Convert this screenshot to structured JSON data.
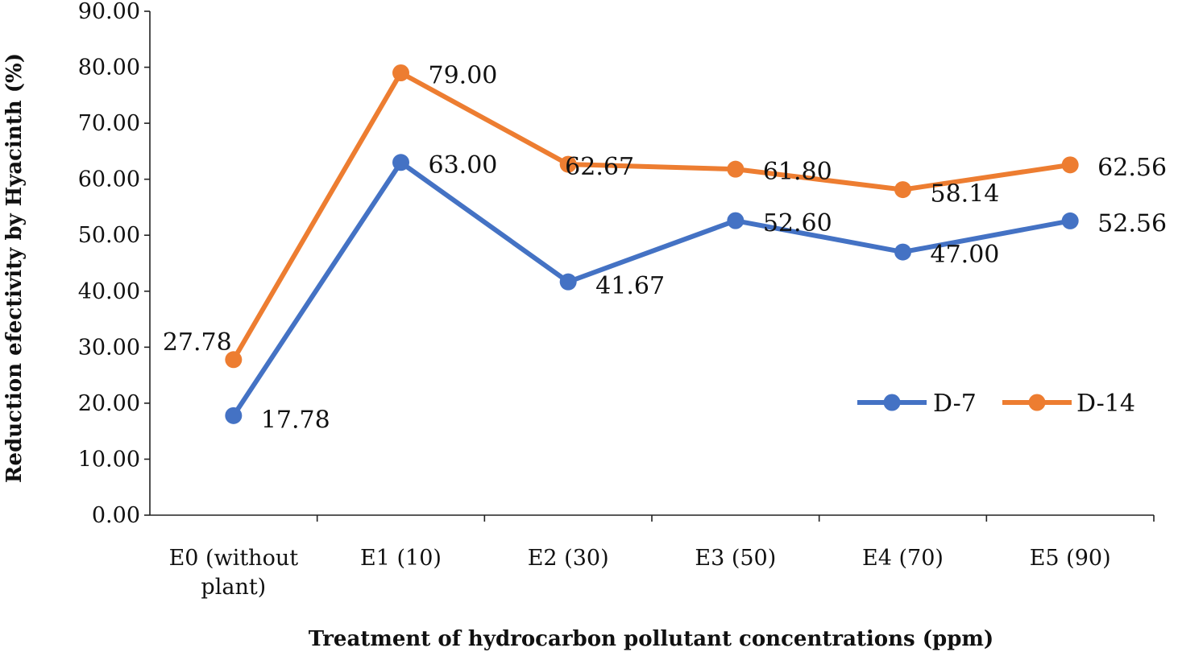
{
  "chart_data": {
    "type": "line",
    "categories": [
      [
        "E0 (without",
        "plant)"
      ],
      [
        "E1 (10)"
      ],
      [
        "E2 (30)"
      ],
      [
        "E3 (50)"
      ],
      [
        "E4 (70)"
      ],
      [
        "E5 (90)"
      ]
    ],
    "series": [
      {
        "name": "D-7",
        "color": "#4472C4",
        "values": [
          17.78,
          63.0,
          41.67,
          52.6,
          47.0,
          52.56
        ],
        "labels": [
          "17.78",
          "63.00",
          "41.67",
          "52.60",
          "47.00",
          "52.56"
        ]
      },
      {
        "name": "D-14",
        "color": "#ED7D31",
        "values": [
          27.78,
          79.0,
          62.67,
          61.8,
          58.14,
          62.56
        ],
        "labels": [
          "27.78",
          "79.00",
          "62.67",
          "61.80",
          "58.14",
          "62.56"
        ]
      }
    ],
    "ylim": [
      0,
      90
    ],
    "yticks": [
      "0.00",
      "10.00",
      "20.00",
      "30.00",
      "40.00",
      "50.00",
      "60.00",
      "70.00",
      "80.00",
      "90.00"
    ],
    "xlabel": "Treatment of hydrocarbon pollutant concentrations (ppm)",
    "ylabel": "Reduction efectivity by Hyacinth (%)",
    "legend_position": "right",
    "grid": false
  }
}
